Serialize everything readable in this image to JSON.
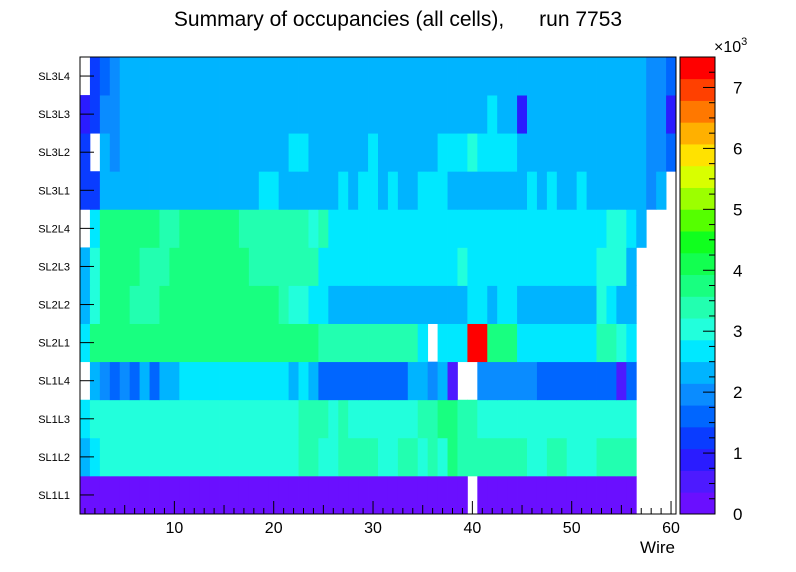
{
  "chart_data": {
    "type": "heatmap",
    "title": "Summary of occupancies (all cells),      run 7753",
    "xlabel": "Wire",
    "ylabel": "",
    "x_range": [
      0.5,
      60.5
    ],
    "x_ticks": [
      10,
      20,
      30,
      40,
      50,
      60
    ],
    "y_categories": [
      "SL1L1",
      "SL1L2",
      "SL1L3",
      "SL1L4",
      "SL2L1",
      "SL2L2",
      "SL2L3",
      "SL2L4",
      "SL3L1",
      "SL3L2",
      "SL3L3",
      "SL3L4"
    ],
    "z_range": [
      0,
      7500
    ],
    "colorbar": {
      "exponent_label": "×10",
      "exponent_power": "3",
      "ticks": [
        "0",
        "1",
        "2",
        "3",
        "4",
        "5",
        "6",
        "7"
      ],
      "colors": [
        "#6a0fff",
        "#4d1aff",
        "#2a1cff",
        "#0a3cff",
        "#0066ff",
        "#0a8cff",
        "#00b4ff",
        "#00e8ff",
        "#22ffdc",
        "#22ffb0",
        "#18ff80",
        "#12ff50",
        "#10ff1e",
        "#55ff00",
        "#9cff00",
        "#d8ff00",
        "#ffe200",
        "#ffb000",
        "#ff7800",
        "#ff4000",
        "#ff0000"
      ]
    },
    "rows": [
      {
        "label": "SL1L1",
        "values": [
          300,
          300,
          300,
          300,
          300,
          300,
          300,
          300,
          300,
          300,
          300,
          300,
          300,
          300,
          300,
          300,
          300,
          300,
          300,
          300,
          300,
          300,
          300,
          300,
          300,
          300,
          300,
          300,
          300,
          300,
          300,
          300,
          300,
          300,
          300,
          300,
          300,
          300,
          300,
          null,
          300,
          300,
          300,
          300,
          300,
          300,
          300,
          300,
          300,
          300,
          300,
          300,
          300,
          300,
          300,
          300,
          null,
          null,
          null,
          null
        ]
      },
      {
        "label": "SL1L2",
        "values": [
          2400,
          2500,
          3000,
          3000,
          3000,
          3000,
          3000,
          3000,
          3000,
          3000,
          3000,
          3000,
          3000,
          3000,
          3000,
          3000,
          3200,
          3200,
          3200,
          3200,
          3200,
          3200,
          3300,
          3300,
          3200,
          3200,
          3300,
          3300,
          3300,
          3300,
          3200,
          3200,
          3300,
          3300,
          3200,
          3300,
          3200,
          3800,
          3500,
          3500,
          3500,
          3500,
          3500,
          3500,
          3500,
          3000,
          3000,
          3500,
          3500,
          3200,
          3200,
          3200,
          3300,
          3300,
          3300,
          3300,
          null,
          null,
          null,
          null
        ]
      },
      {
        "label": "SL1L3",
        "values": [
          2800,
          2900,
          3000,
          3000,
          3000,
          3000,
          3000,
          3000,
          3000,
          3000,
          3000,
          3000,
          3000,
          3000,
          3000,
          3000,
          3200,
          3200,
          3200,
          3200,
          3200,
          3200,
          3300,
          3300,
          3300,
          3200,
          3300,
          3200,
          3200,
          3200,
          3200,
          3200,
          3200,
          3200,
          3300,
          3500,
          3800,
          3600,
          3400,
          3300,
          3200,
          3200,
          3200,
          3200,
          3200,
          3200,
          3200,
          3200,
          3200,
          3200,
          3200,
          3200,
          3200,
          3200,
          3200,
          3200,
          null,
          null,
          null,
          null
        ]
      },
      {
        "label": "SL1L4",
        "values": [
          null,
          2400,
          2000,
          1700,
          2000,
          1600,
          2400,
          1700,
          2400,
          2400,
          2700,
          2700,
          2700,
          2700,
          2700,
          2700,
          2700,
          2700,
          2700,
          2700,
          2700,
          2400,
          2700,
          2400,
          1700,
          1700,
          1700,
          1700,
          1700,
          1700,
          1700,
          1700,
          1700,
          2400,
          2400,
          2000,
          2400,
          400,
          null,
          null,
          2100,
          2100,
          2100,
          2100,
          2100,
          1800,
          1500,
          1500,
          1500,
          1500,
          1500,
          1500,
          1500,
          1500,
          400,
          1600,
          null,
          null,
          null,
          null
        ]
      },
      {
        "label": "SL2L1",
        "values": [
          2800,
          3600,
          3600,
          3600,
          3600,
          3600,
          3600,
          3600,
          3600,
          3600,
          3800,
          3800,
          3800,
          3800,
          3600,
          3600,
          3600,
          3600,
          3600,
          3600,
          3600,
          3600,
          3600,
          3600,
          3300,
          3300,
          3300,
          3300,
          3300,
          3300,
          3300,
          3300,
          3300,
          3300,
          2800,
          null,
          2800,
          2800,
          2800,
          7300,
          7300,
          3600,
          3600,
          3600,
          2800,
          2800,
          2800,
          2800,
          2800,
          2800,
          2800,
          2800,
          3300,
          3300,
          3000,
          2600,
          null,
          null,
          null,
          null
        ]
      },
      {
        "label": "SL2L2",
        "values": [
          2400,
          3100,
          3600,
          3600,
          3600,
          3300,
          3300,
          3300,
          3600,
          3600,
          3600,
          3600,
          3600,
          3600,
          3600,
          3600,
          3600,
          3600,
          3600,
          3600,
          3300,
          3000,
          3000,
          2700,
          2700,
          2400,
          2400,
          2400,
          2400,
          2400,
          2400,
          2400,
          2400,
          2400,
          2400,
          2400,
          2400,
          2400,
          2400,
          2700,
          2700,
          2400,
          2700,
          2700,
          2400,
          2400,
          2400,
          2400,
          2400,
          2400,
          2400,
          2400,
          3000,
          2700,
          2400,
          2400,
          null,
          null,
          null,
          null
        ]
      },
      {
        "label": "SL2L3",
        "values": [
          2200,
          3200,
          3600,
          3600,
          3600,
          3600,
          3300,
          3300,
          3300,
          3600,
          3600,
          3600,
          3600,
          3600,
          3600,
          3600,
          3600,
          3300,
          3300,
          3300,
          3300,
          3300,
          3300,
          3300,
          2600,
          2600,
          2600,
          2600,
          2600,
          2600,
          2600,
          2600,
          2600,
          2600,
          2600,
          2600,
          2600,
          2600,
          2900,
          2600,
          2600,
          2600,
          2600,
          2600,
          2600,
          2600,
          2600,
          2600,
          2600,
          2600,
          2600,
          2600,
          2900,
          3200,
          2900,
          2400,
          null,
          null,
          null,
          null
        ]
      },
      {
        "label": "SL2L4",
        "values": [
          null,
          2700,
          3600,
          3600,
          3600,
          3600,
          3600,
          3600,
          3300,
          3300,
          3600,
          3600,
          3600,
          3600,
          3600,
          3600,
          3300,
          3300,
          3300,
          3300,
          3300,
          3300,
          3300,
          2900,
          3300,
          2700,
          2700,
          2700,
          2700,
          2700,
          2700,
          2700,
          2700,
          2700,
          2700,
          2700,
          2700,
          2700,
          2700,
          2700,
          2700,
          2700,
          2700,
          2700,
          2700,
          2700,
          2700,
          2700,
          2700,
          2700,
          2700,
          2700,
          2700,
          3000,
          3000,
          2700,
          2400,
          null,
          null,
          null
        ]
      },
      {
        "label": "SL3L1",
        "values": [
          1200,
          1200,
          2300,
          2200,
          2400,
          2400,
          2400,
          2400,
          2400,
          2400,
          2400,
          2400,
          2400,
          2400,
          2400,
          2400,
          2400,
          2400,
          2700,
          2700,
          2400,
          2400,
          2400,
          2400,
          2400,
          2400,
          2700,
          2400,
          2700,
          2700,
          2400,
          2700,
          2400,
          2400,
          2700,
          2700,
          2700,
          2400,
          2400,
          2400,
          2400,
          2400,
          2400,
          2400,
          2400,
          2700,
          2400,
          2700,
          2400,
          2400,
          2700,
          2400,
          2400,
          2400,
          2400,
          2400,
          2400,
          2000,
          2400,
          null
        ]
      },
      {
        "label": "SL3L2",
        "values": [
          1200,
          null,
          2200,
          2000,
          2400,
          2400,
          2400,
          2400,
          2400,
          2400,
          2400,
          2400,
          2400,
          2400,
          2400,
          2400,
          2400,
          2400,
          2400,
          2400,
          2400,
          2700,
          2700,
          2400,
          2400,
          2400,
          2400,
          2400,
          2400,
          2700,
          2400,
          2400,
          2400,
          2400,
          2400,
          2400,
          2700,
          2700,
          2700,
          3000,
          2700,
          2700,
          2700,
          2700,
          2400,
          2400,
          2400,
          2400,
          2400,
          2400,
          2400,
          2400,
          2400,
          2400,
          2400,
          2400,
          2400,
          2000,
          2000,
          1700
        ]
      },
      {
        "label": "SL3L3",
        "values": [
          900,
          1300,
          2000,
          2000,
          2400,
          2400,
          2400,
          2400,
          2200,
          2400,
          2400,
          2400,
          2400,
          2400,
          2400,
          2400,
          2400,
          2400,
          2400,
          2400,
          2400,
          2400,
          2400,
          2400,
          2400,
          2400,
          2400,
          2400,
          2400,
          2400,
          2400,
          2400,
          2400,
          2400,
          2400,
          2400,
          2400,
          2400,
          2400,
          2400,
          2400,
          2700,
          2400,
          2400,
          900,
          2400,
          2400,
          2400,
          2400,
          2400,
          2400,
          2400,
          2400,
          2400,
          2400,
          2400,
          2400,
          2000,
          2000,
          900
        ]
      },
      {
        "label": "SL3L4",
        "values": [
          null,
          1200,
          1500,
          2000,
          2200,
          2200,
          2400,
          2200,
          2400,
          2400,
          2400,
          2200,
          2200,
          2400,
          2400,
          2400,
          2400,
          2400,
          2400,
          2400,
          2400,
          2400,
          2400,
          2400,
          2400,
          2400,
          2400,
          2400,
          2400,
          2400,
          2400,
          2400,
          2400,
          2400,
          2400,
          2400,
          2400,
          2400,
          2400,
          2400,
          2400,
          2400,
          2400,
          2400,
          2200,
          2400,
          2400,
          2400,
          2400,
          2400,
          2400,
          2400,
          2400,
          2400,
          2400,
          2400,
          2400,
          2000,
          2000,
          1700
        ]
      }
    ]
  }
}
